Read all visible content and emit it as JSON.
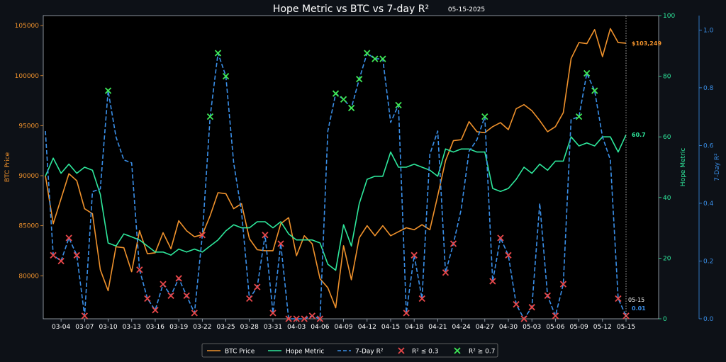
{
  "chart_data": {
    "type": "line",
    "title": "Hope Metric vs BTC vs 7-day R²",
    "date_label": "05-15-2025",
    "ylabel_left": "BTC Price",
    "ylabel_right1": "Hope Metric",
    "ylabel_right2": "7-Day R²",
    "x_tick_labels": [
      "03-04",
      "03-07",
      "03-10",
      "03-13",
      "03-16",
      "03-19",
      "03-22",
      "03-25",
      "03-28",
      "03-31",
      "04-03",
      "04-06",
      "04-09",
      "04-12",
      "04-15",
      "04-18",
      "04-21",
      "04-24",
      "04-27",
      "04-30",
      "05-03",
      "05-06",
      "05-09",
      "05-12",
      "05-15"
    ],
    "left_ticks": [
      "80000",
      "85000",
      "90000",
      "95000",
      "100000",
      "105000"
    ],
    "right1_ticks": [
      "0",
      "20",
      "40",
      "60",
      "80",
      "100"
    ],
    "right2_ticks": [
      "0.0",
      "0.2",
      "0.4",
      "0.6",
      "0.8",
      "1.0"
    ],
    "ylim_left": [
      75700,
      106000
    ],
    "ylim_right1": [
      0,
      100
    ],
    "ylim_right2": [
      0,
      1.05
    ],
    "x_start_date": "03-02",
    "btc": [
      90000,
      85200,
      87700,
      90200,
      89500,
      86700,
      86200,
      80600,
      78500,
      82900,
      82800,
      80400,
      84500,
      82200,
      82300,
      84300,
      82700,
      85500,
      84500,
      83900,
      84100,
      86000,
      88300,
      88200,
      86700,
      87200,
      83700,
      82600,
      82500,
      82500,
      85200,
      85800,
      82000,
      84000,
      83200,
      79700,
      78800,
      76800,
      83000,
      79600,
      83800,
      85000,
      84000,
      85000,
      84000,
      84400,
      84800,
      84600,
      85100,
      84600,
      88000,
      91500,
      93500,
      93600,
      95400,
      94400,
      94300,
      94900,
      95300,
      94600,
      96700,
      97100,
      96500,
      95500,
      94400,
      94900,
      96300,
      101700,
      103300,
      103200,
      104600,
      101900,
      104700,
      103300,
      103249
    ],
    "hope": [
      47,
      53,
      48,
      51,
      48,
      50,
      49,
      41,
      25,
      24,
      28,
      27,
      26,
      24,
      22,
      22,
      21,
      23,
      22,
      23,
      22,
      24,
      26,
      29,
      31,
      30,
      30,
      32,
      32,
      30,
      32,
      28,
      26,
      26,
      26,
      25,
      18,
      16,
      31,
      24,
      38,
      46,
      47,
      47,
      55,
      50,
      50,
      51,
      50,
      49,
      47,
      56,
      55,
      56,
      56,
      55,
      55,
      43,
      42,
      43,
      46,
      50,
      48,
      51,
      49,
      52,
      52,
      60,
      57,
      58,
      57,
      60,
      60,
      55,
      60.7
    ],
    "r2": [
      0.65,
      0.22,
      0.2,
      0.28,
      0.22,
      0.01,
      0.44,
      0.45,
      0.79,
      0.63,
      0.55,
      0.54,
      0.17,
      0.07,
      0.03,
      0.12,
      0.08,
      0.14,
      0.08,
      0.02,
      0.29,
      0.7,
      0.92,
      0.84,
      0.54,
      0.37,
      0.07,
      0.11,
      0.29,
      0.02,
      0.26,
      0.0,
      0.0,
      0.0,
      0.01,
      0.0,
      0.65,
      0.78,
      0.76,
      0.73,
      0.83,
      0.92,
      0.9,
      0.9,
      0.68,
      0.74,
      0.02,
      0.22,
      0.07,
      0.57,
      0.65,
      0.16,
      0.26,
      0.38,
      0.58,
      0.62,
      0.7,
      0.13,
      0.28,
      0.22,
      0.05,
      0.0,
      0.04,
      0.4,
      0.08,
      0.01,
      0.12,
      0.69,
      0.7,
      0.85,
      0.79,
      0.63,
      0.55,
      0.07,
      0.01
    ],
    "last_btc_label": "$103,249",
    "last_hope_label": "60.7",
    "last_r2_label": "0.01",
    "last_date_label": "05-15",
    "low_threshold": 0.3,
    "high_threshold": 0.7,
    "legend": [
      "BTC Price",
      "Hope Metric",
      "7-Day R²",
      "R² ≤ 0.3",
      "R² ≥ 0.7"
    ],
    "legend_position": "bottom-center",
    "colors": {
      "btc": "#f0922c",
      "hope": "#2ee89c",
      "r2": "#3a8fe8",
      "low_marker": "#e8474a",
      "high_marker": "#3ee857",
      "background_outer": "#0d1117",
      "background_plot": "#000000",
      "text": "#ffffff"
    }
  }
}
